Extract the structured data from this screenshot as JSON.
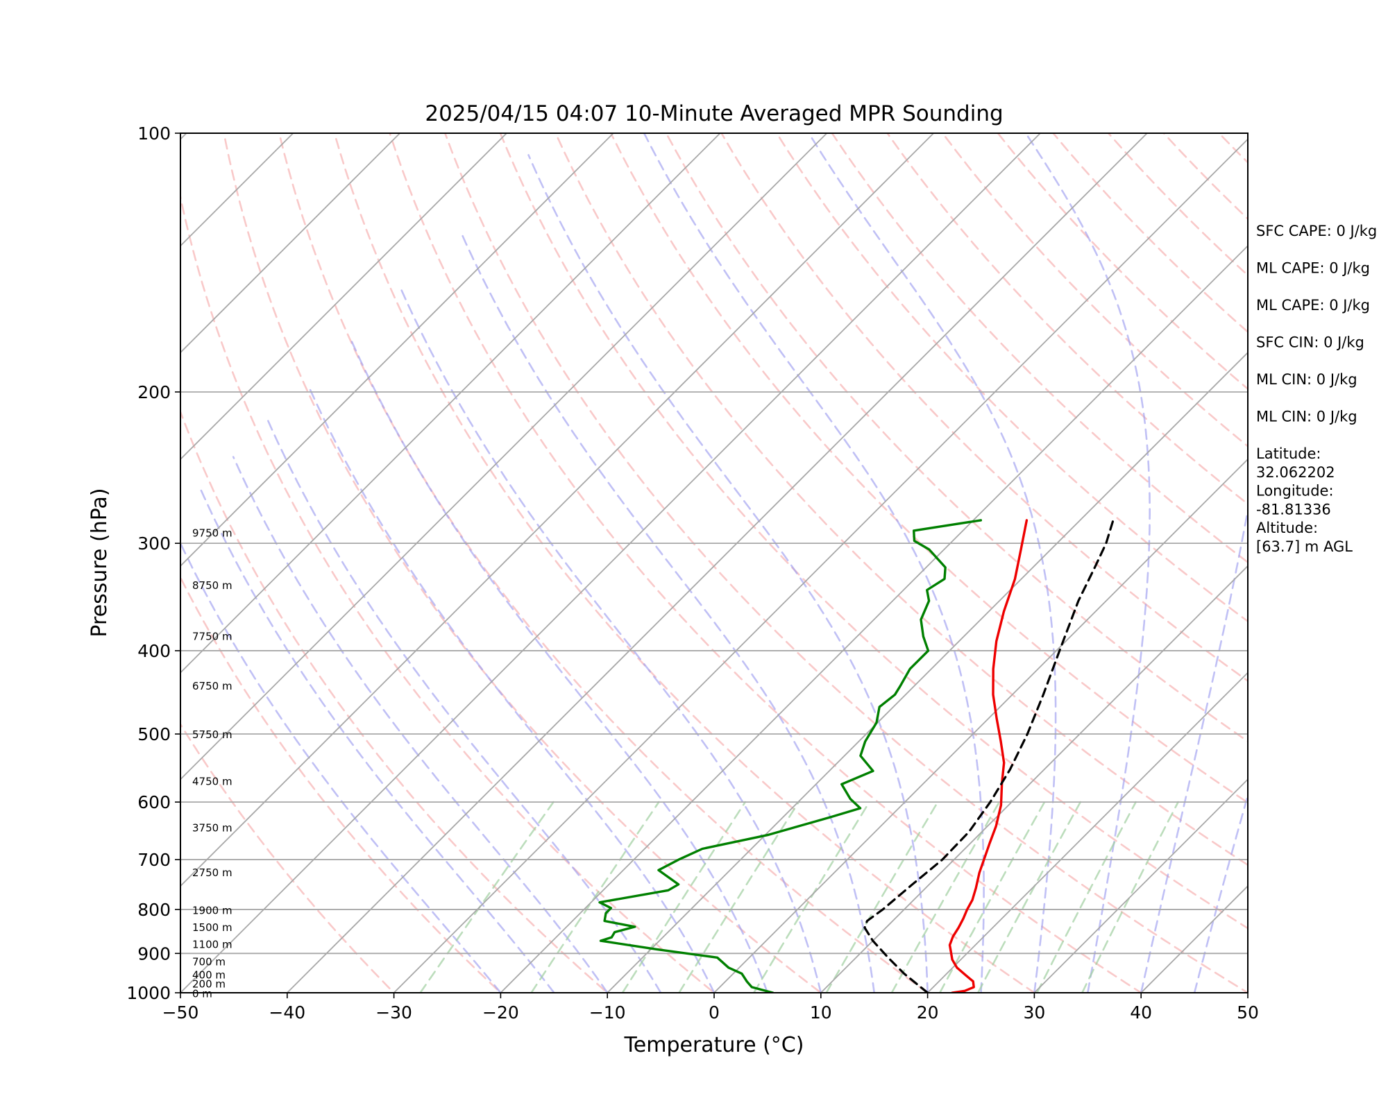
{
  "chart_data": {
    "type": "line",
    "chart_kind": "skew-t log-p sounding",
    "title": "2025/04/15 04:07 10-Minute Averaged MPR Sounding",
    "xlabel": "Temperature (°C)",
    "ylabel": "Pressure (hPa)",
    "xlim": [
      -50,
      50
    ],
    "ylim": [
      1000,
      100
    ],
    "y_scale": "log",
    "x_ticks": [
      "−50",
      "−40",
      "−30",
      "−20",
      "−10",
      "0",
      "10",
      "20",
      "30",
      "40",
      "50"
    ],
    "y_ticks": [
      "100",
      "200",
      "300",
      "400",
      "500",
      "600",
      "700",
      "800",
      "900",
      "1000"
    ],
    "colors": {
      "temperature": "#ee0000",
      "dewpoint": "#008000",
      "parcel": "#000000",
      "dry_adiabats": "#f5a5a5",
      "moist_adiabats": "#9e9ef0",
      "mixing_ratio": "#9fcf9f",
      "isotherms": "#a8a8a8",
      "isobars": "#a8a8a8"
    },
    "series": [
      {
        "key": "temperature",
        "line_style": "solid",
        "points": [
          [
            1000,
            22.3
          ],
          [
            995,
            23.3
          ],
          [
            985,
            23.8
          ],
          [
            970,
            23.2
          ],
          [
            955,
            22.0
          ],
          [
            935,
            20.4
          ],
          [
            915,
            19.2
          ],
          [
            895,
            18.3
          ],
          [
            880,
            17.6
          ],
          [
            860,
            17.1
          ],
          [
            840,
            16.8
          ],
          [
            820,
            16.4
          ],
          [
            800,
            15.9
          ],
          [
            780,
            15.5
          ],
          [
            755,
            14.7
          ],
          [
            725,
            13.6
          ],
          [
            700,
            12.8
          ],
          [
            670,
            11.8
          ],
          [
            640,
            10.8
          ],
          [
            605,
            9.3
          ],
          [
            570,
            7.3
          ],
          [
            540,
            5.6
          ],
          [
            510,
            3.3
          ],
          [
            480,
            0.8
          ],
          [
            450,
            -1.8
          ],
          [
            420,
            -4.2
          ],
          [
            390,
            -6.5
          ],
          [
            360,
            -8.6
          ],
          [
            330,
            -10.6
          ],
          [
            305,
            -12.8
          ],
          [
            282,
            -15.0
          ]
        ]
      },
      {
        "key": "dewpoint",
        "line_style": "solid",
        "points": [
          [
            1000,
            5.5
          ],
          [
            985,
            3.0
          ],
          [
            970,
            2.0
          ],
          [
            950,
            0.8
          ],
          [
            935,
            -1.0
          ],
          [
            910,
            -3.0
          ],
          [
            890,
            -9.5
          ],
          [
            870,
            -15.5
          ],
          [
            862,
            -14.8
          ],
          [
            850,
            -15.0
          ],
          [
            838,
            -13.6
          ],
          [
            825,
            -17.0
          ],
          [
            808,
            -17.6
          ],
          [
            797,
            -17.6
          ],
          [
            785,
            -19.2
          ],
          [
            760,
            -13.9
          ],
          [
            748,
            -13.5
          ],
          [
            720,
            -16.7
          ],
          [
            700,
            -15.8
          ],
          [
            680,
            -14.6
          ],
          [
            655,
            -9.7
          ],
          [
            625,
            -5.6
          ],
          [
            610,
            -3.6
          ],
          [
            595,
            -5.4
          ],
          [
            572,
            -7.6
          ],
          [
            552,
            -5.9
          ],
          [
            530,
            -8.5
          ],
          [
            510,
            -9.4
          ],
          [
            485,
            -10.1
          ],
          [
            465,
            -11.3
          ],
          [
            450,
            -11.0
          ],
          [
            440,
            -11.3
          ],
          [
            420,
            -12.0
          ],
          [
            400,
            -12.0
          ],
          [
            385,
            -13.8
          ],
          [
            368,
            -15.6
          ],
          [
            350,
            -16.6
          ],
          [
            340,
            -17.8
          ],
          [
            330,
            -17.2
          ],
          [
            320,
            -18.2
          ],
          [
            305,
            -21.4
          ],
          [
            298,
            -23.6
          ],
          [
            290,
            -24.6
          ],
          [
            282,
            -19.3
          ]
        ]
      },
      {
        "key": "parcel",
        "line_style": "dashed",
        "points": [
          [
            1000,
            20.0
          ],
          [
            950,
            16.0
          ],
          [
            910,
            13.0
          ],
          [
            870,
            10.0
          ],
          [
            840,
            8.0
          ],
          [
            825,
            7.6
          ],
          [
            800,
            8.0
          ],
          [
            750,
            8.4
          ],
          [
            700,
            8.9
          ],
          [
            650,
            8.8
          ],
          [
            600,
            8.0
          ],
          [
            550,
            6.8
          ],
          [
            500,
            5.1
          ],
          [
            450,
            2.9
          ],
          [
            400,
            0.3
          ],
          [
            350,
            -2.6
          ],
          [
            320,
            -4.2
          ],
          [
            300,
            -5.4
          ],
          [
            282,
            -6.9
          ]
        ]
      }
    ],
    "height_labels": [
      {
        "label": "0 m",
        "pressure": 1003
      },
      {
        "label": "200 m",
        "pressure": 977
      },
      {
        "label": "400 m",
        "pressure": 954
      },
      {
        "label": "700 m",
        "pressure": 921
      },
      {
        "label": "1100 m",
        "pressure": 879
      },
      {
        "label": "1500 m",
        "pressure": 840
      },
      {
        "label": "1900 m",
        "pressure": 802
      },
      {
        "label": "2750 m",
        "pressure": 725
      },
      {
        "label": "3750 m",
        "pressure": 643
      },
      {
        "label": "4750 m",
        "pressure": 568
      },
      {
        "label": "5750 m",
        "pressure": 501
      },
      {
        "label": "6750 m",
        "pressure": 440
      },
      {
        "label": "7750 m",
        "pressure": 385
      },
      {
        "label": "8750 m",
        "pressure": 336
      },
      {
        "label": "9750 m",
        "pressure": 292
      }
    ],
    "info_panel": [
      [
        "SFC CAPE: 0 J/kg"
      ],
      [
        "ML CAPE: 0 J/kg"
      ],
      [
        "ML CAPE: 0 J/kg"
      ],
      [
        "SFC CIN: 0 J/kg"
      ],
      [
        "ML CIN: 0 J/kg"
      ],
      [
        "ML CIN: 0 J/kg"
      ],
      [
        "Latitude:",
        "32.062202"
      ],
      [
        "Longitude:",
        "-81.81336"
      ],
      [
        "Altitude:",
        "[63.7] m AGL"
      ]
    ]
  }
}
